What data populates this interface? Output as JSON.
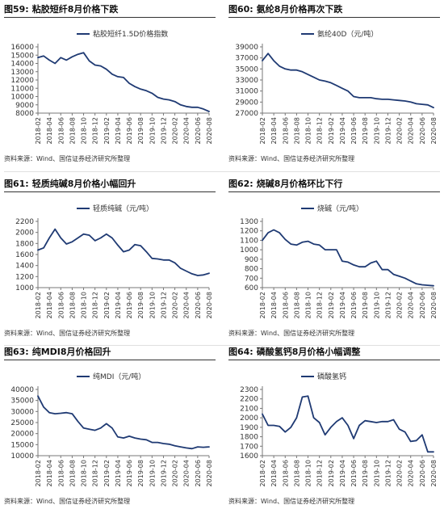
{
  "source_text": "资料来源：Wind、国信证券经济研究所整理",
  "x_ticks": [
    "2018-02",
    "2018-04",
    "2018-06",
    "2018-08",
    "2018-10",
    "2018-12",
    "2019-02",
    "2019-04",
    "2019-06",
    "2019-08",
    "2019-10",
    "2019-12",
    "2020-02",
    "2020-04",
    "2020-06",
    "2020-08"
  ],
  "colors": {
    "line": "#1f3a73",
    "axis": "#777777"
  },
  "panels": [
    {
      "figure_no": "图59:",
      "title": "粘胶短纤8月价格下跌",
      "legend": "粘胶短纤1.5D价格指数",
      "chart_data": {
        "type": "line",
        "ylim": [
          8000,
          16000
        ],
        "yticks": [
          8000,
          9000,
          10000,
          11000,
          12000,
          13000,
          14000,
          15000,
          16000
        ],
        "x": [
          0,
          0.5,
          1,
          1.5,
          2,
          2.5,
          3,
          3.5,
          4,
          4.5,
          5,
          5.5,
          6,
          6.5,
          7,
          7.5,
          8,
          8.5,
          9,
          9.5,
          10,
          10.5,
          11,
          11.5,
          12,
          12.5,
          13,
          13.5,
          14,
          14.5,
          15
        ],
        "series": [
          {
            "name": "粘胶短纤1.5D价格指数",
            "values": [
              14700,
              14900,
              14400,
              14000,
              14700,
              14400,
              14800,
              15100,
              15300,
              14300,
              13800,
              13700,
              13300,
              12700,
              12400,
              12300,
              11600,
              11200,
              10900,
              10700,
              10400,
              9900,
              9700,
              9600,
              9400,
              9000,
              8800,
              8700,
              8700,
              8500,
              8200
            ]
          }
        ]
      }
    },
    {
      "figure_no": "图60:",
      "title": "氨纶8月价格再次下跌",
      "legend": "氨纶40D（元/吨）",
      "chart_data": {
        "type": "line",
        "ylim": [
          27000,
          39000
        ],
        "yticks": [
          27000,
          29000,
          31000,
          33000,
          35000,
          37000,
          39000
        ],
        "x": [
          0,
          0.5,
          1,
          1.5,
          2,
          2.5,
          3,
          3.5,
          4,
          4.5,
          5,
          5.5,
          6,
          6.5,
          7,
          7.5,
          8,
          8.5,
          9,
          9.5,
          10,
          10.5,
          11,
          11.5,
          12,
          12.5,
          13,
          13.5,
          14,
          14.5,
          15
        ],
        "series": [
          {
            "name": "氨纶40D（元/吨）",
            "values": [
              36500,
              37800,
              36500,
              35500,
              35000,
              34800,
              34800,
              34500,
              34000,
              33500,
              33000,
              32800,
              32500,
              32000,
              31500,
              31000,
              30000,
              29800,
              29800,
              29800,
              29600,
              29500,
              29500,
              29400,
              29300,
              29200,
              29000,
              28700,
              28600,
              28500,
              28000
            ]
          }
        ]
      }
    },
    {
      "figure_no": "图61:",
      "title": "轻质纯碱8月价格小幅回升",
      "legend": "轻质纯碱（元/吨）",
      "chart_data": {
        "type": "line",
        "ylim": [
          1000,
          2200
        ],
        "yticks": [
          1000,
          1200,
          1400,
          1600,
          1800,
          2000,
          2200
        ],
        "x": [
          0,
          0.5,
          1,
          1.5,
          2,
          2.5,
          3,
          3.5,
          4,
          4.5,
          5,
          5.5,
          6,
          6.5,
          7,
          7.5,
          8,
          8.5,
          9,
          9.5,
          10,
          10.5,
          11,
          11.5,
          12,
          12.5,
          13,
          13.5,
          14,
          14.5,
          15
        ],
        "series": [
          {
            "name": "轻质纯碱（元/吨）",
            "values": [
              1680,
              1720,
              1900,
              2060,
              1900,
              1790,
              1830,
              1900,
              1970,
              1950,
              1850,
              1900,
              1970,
              1900,
              1770,
              1650,
              1680,
              1780,
              1760,
              1650,
              1530,
              1520,
              1500,
              1500,
              1450,
              1350,
              1300,
              1250,
              1220,
              1230,
              1260
            ]
          }
        ]
      }
    },
    {
      "figure_no": "图62:",
      "title": "烧碱8月价格环比下行",
      "legend": "烧碱（元/吨）",
      "chart_data": {
        "type": "line",
        "ylim": [
          600,
          1300
        ],
        "yticks": [
          600,
          700,
          800,
          900,
          1000,
          1100,
          1200,
          1300
        ],
        "x": [
          0,
          0.5,
          1,
          1.5,
          2,
          2.5,
          3,
          3.5,
          4,
          4.5,
          5,
          5.5,
          6,
          6.5,
          7,
          7.5,
          8,
          8.5,
          9,
          9.5,
          10,
          10.5,
          11,
          11.5,
          12,
          12.5,
          13,
          13.5,
          14,
          14.5,
          15
        ],
        "series": [
          {
            "name": "烧碱（元/吨）",
            "values": [
              1100,
              1180,
              1210,
              1180,
              1110,
              1060,
              1050,
              1080,
              1090,
              1060,
              1050,
              1000,
              1000,
              1000,
              880,
              870,
              840,
              820,
              820,
              860,
              880,
              790,
              790,
              740,
              720,
              700,
              670,
              640,
              630,
              625,
              620
            ]
          }
        ]
      }
    },
    {
      "figure_no": "图63:",
      "title": "纯MDI8月价格回升",
      "legend": "纯MDI（元/吨）",
      "chart_data": {
        "type": "line",
        "ylim": [
          10000,
          40000
        ],
        "yticks": [
          10000,
          15000,
          20000,
          25000,
          30000,
          35000,
          40000
        ],
        "x": [
          0,
          0.5,
          1,
          1.5,
          2,
          2.5,
          3,
          3.5,
          4,
          4.5,
          5,
          5.5,
          6,
          6.5,
          7,
          7.5,
          8,
          8.5,
          9,
          9.5,
          10,
          10.5,
          11,
          11.5,
          12,
          12.5,
          13,
          13.5,
          14,
          14.5,
          15
        ],
        "series": [
          {
            "name": "纯MDI（元/吨）",
            "values": [
              37000,
              32000,
              29500,
              29000,
              29200,
              29500,
              29000,
              25500,
              22500,
              22000,
              21500,
              22500,
              24500,
              22500,
              18500,
              18000,
              18800,
              18000,
              17500,
              17200,
              16000,
              16000,
              15500,
              15200,
              14500,
              14000,
              13500,
              13200,
              14000,
              13800,
              14000
            ]
          }
        ]
      }
    },
    {
      "figure_no": "图64:",
      "title": "磷酸氢钙8月价格小幅调整",
      "legend": "磷酸氢钙",
      "chart_data": {
        "type": "line",
        "ylim": [
          1600,
          2300
        ],
        "yticks": [
          1600,
          1700,
          1800,
          1900,
          2000,
          2100,
          2200,
          2300
        ],
        "x": [
          0,
          0.5,
          1,
          1.5,
          2,
          2.5,
          3,
          3.5,
          4,
          4.5,
          5,
          5.5,
          6,
          6.5,
          7,
          7.5,
          8,
          8.5,
          9,
          9.5,
          10,
          10.5,
          11,
          11.5,
          12,
          12.5,
          13,
          13.5,
          14,
          14.5,
          15
        ],
        "series": [
          {
            "name": "磷酸氢钙",
            "values": [
              2040,
              1920,
              1920,
              1910,
              1850,
              1900,
              2000,
              2220,
              2230,
              2000,
              1950,
              1820,
              1900,
              1960,
              2000,
              1920,
              1780,
              1920,
              1970,
              1960,
              1950,
              1960,
              1960,
              1980,
              1880,
              1850,
              1750,
              1760,
              1820,
              1640,
              1640
            ]
          }
        ]
      }
    }
  ]
}
